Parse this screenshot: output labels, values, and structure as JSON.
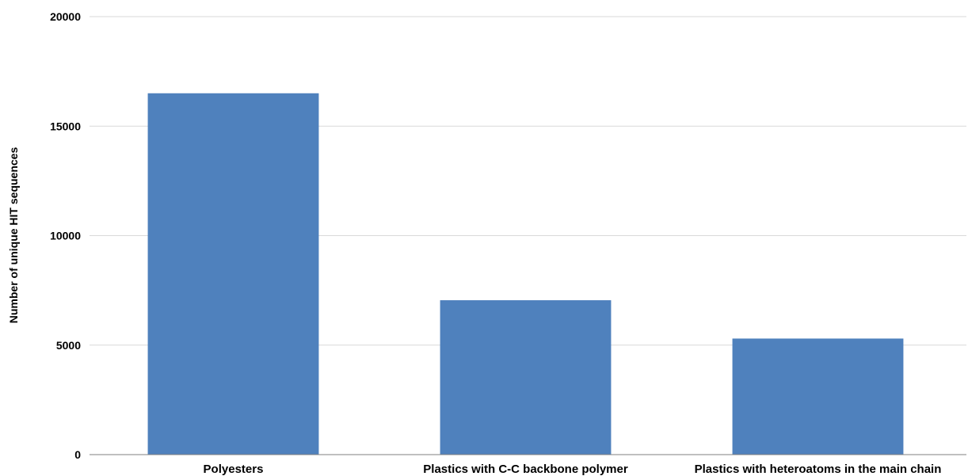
{
  "chart_data": {
    "type": "bar",
    "title": "",
    "xlabel": "",
    "ylabel": "Number of unique HIT sequences",
    "categories": [
      "Polyesters",
      "Plastics with C-C backbone polymer",
      "Plastics with heteroatoms in the main chain"
    ],
    "values": [
      16500,
      7050,
      5300
    ],
    "ylim": [
      0,
      20000
    ],
    "yticks": [
      0,
      5000,
      10000,
      15000,
      20000
    ],
    "ytick_labels": [
      "0",
      "5000",
      "10000",
      "15000",
      "20000"
    ],
    "grid": true,
    "legend": "none",
    "bar_color": "#4f81bd",
    "grid_color": "#d9d9d9",
    "axis_color": "#808080"
  }
}
